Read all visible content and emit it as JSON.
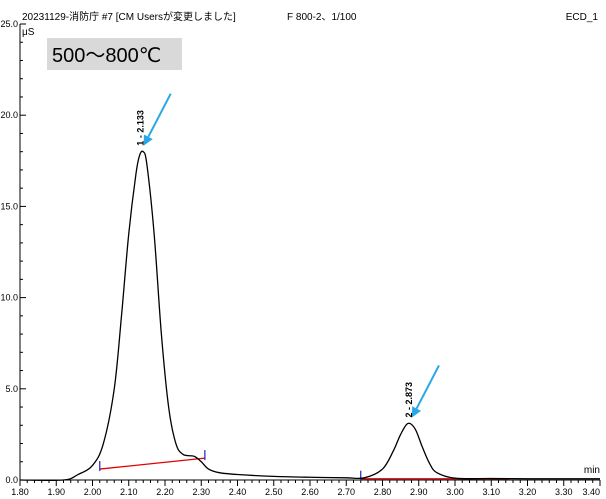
{
  "header": {
    "left": "20231129-消防庁 #7 [CM Usersが変更しました]",
    "center": "F 800-2、1/100",
    "right": "ECD_1"
  },
  "annotation": {
    "temperature": "500～800℃"
  },
  "colors": {
    "trace": "#000000",
    "baseline": "#e00000",
    "arrow": "#2aa8e6",
    "marker": "#2020c0",
    "tempbox": "#d9d9d9"
  },
  "chart_data": {
    "type": "line",
    "ylabel": "μS",
    "xunit": "min",
    "xlim": [
      1.8,
      3.4
    ],
    "ylim": [
      0,
      25.0
    ],
    "xticks": [
      "1.80",
      "1.90",
      "2.00",
      "2.10",
      "2.20",
      "2.30",
      "2.40",
      "2.50",
      "2.60",
      "2.70",
      "2.80",
      "2.90",
      "3.00",
      "3.10",
      "3.20",
      "3.30",
      "3.40"
    ],
    "yticks": [
      "0.0",
      "5.0",
      "10.0",
      "15.0",
      "20.0",
      "25.0"
    ],
    "series": [
      {
        "x": [
          1.8,
          1.92,
          1.96,
          2.0,
          2.03,
          2.06,
          2.08,
          2.1,
          2.12,
          2.13,
          2.14,
          2.15,
          2.17,
          2.19,
          2.21,
          2.23,
          2.25,
          2.28,
          2.3,
          2.32,
          2.35,
          2.4,
          2.5,
          2.6,
          2.7,
          2.75,
          2.8,
          2.83,
          2.85,
          2.87,
          2.89,
          2.91,
          2.93,
          2.95,
          3.0,
          3.1,
          3.2,
          3.3,
          3.4
        ],
        "y": [
          0.0,
          0.0,
          0.3,
          0.8,
          2.0,
          5.0,
          9.0,
          13.5,
          16.8,
          17.8,
          18.0,
          17.3,
          13.5,
          8.0,
          4.0,
          2.0,
          1.4,
          1.3,
          1.0,
          0.6,
          0.4,
          0.3,
          0.2,
          0.15,
          0.12,
          0.12,
          0.6,
          1.6,
          2.5,
          3.1,
          2.8,
          1.8,
          0.9,
          0.4,
          0.1,
          0.08,
          0.07,
          0.07,
          0.07
        ]
      }
    ],
    "baselines": [
      {
        "x": [
          2.02,
          2.31
        ],
        "y": [
          0.6,
          1.2
        ]
      },
      {
        "x": [
          2.74,
          3.15
        ],
        "y": [
          0.07,
          0.07
        ]
      }
    ],
    "peaks": [
      {
        "number": "1",
        "rt": "2.133",
        "x": 2.133,
        "y": 18.0
      },
      {
        "number": "2",
        "rt": "2.873",
        "x": 2.873,
        "y": 3.1
      }
    ],
    "integration_marks": [
      2.02,
      2.31,
      2.74
    ]
  }
}
